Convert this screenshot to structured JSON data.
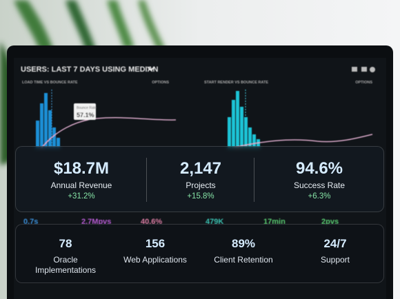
{
  "background": {
    "header": "USERS: LAST 7 DAYS USING MEDIAN",
    "left_chart_title": "LOAD TIME VS BOUNCE RATE",
    "right_chart_title": "START RENDER VS BOUNCE RATE",
    "options": "OPTIONS",
    "tooltip_label": "Bounce Rate",
    "tooltip_value": "57.1%",
    "metrics": [
      "0.7s",
      "2.7Mpvs",
      "40.6%",
      "479K",
      "17min",
      "2pvs"
    ]
  },
  "highlights": [
    {
      "value": "$18.7M",
      "label": "Annual Revenue",
      "change": "+31.2%"
    },
    {
      "value": "2,147",
      "label": "Projects",
      "change": "+15.8%"
    },
    {
      "value": "94.6%",
      "label": "Success Rate",
      "change": "+6.3%"
    }
  ],
  "stats": [
    {
      "value": "78",
      "label": "Oracle Implementations"
    },
    {
      "value": "156",
      "label": "Web Applications"
    },
    {
      "value": "89%",
      "label": "Client Retention"
    },
    {
      "value": "24/7",
      "label": "Support"
    }
  ]
}
